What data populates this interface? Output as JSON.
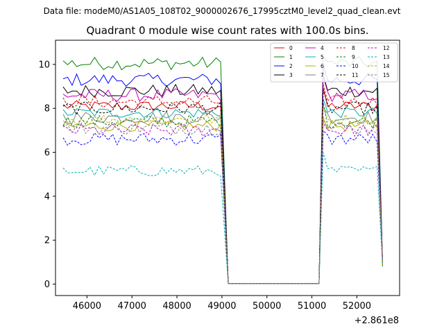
{
  "chart_data": {
    "type": "line",
    "suptitle": "Data file: modeM0/AS1A05_108T02_9000002676_17995cztM0_level2_quad_clean.evt",
    "title": "Quadrant 0 module wise count rates with 100.0s bins.",
    "xlabel": "",
    "ylabel": "",
    "x_offset_label": "+2.861e8",
    "xlim": [
      45300,
      52950
    ],
    "ylim": [
      -0.52,
      11.1
    ],
    "x_ticks": [
      46000,
      47000,
      48000,
      49000,
      50000,
      51000,
      52000
    ],
    "x_tick_labels": [
      "46000",
      "47000",
      "48000",
      "49000",
      "50000",
      "51000",
      "52000"
    ],
    "y_ticks": [
      0,
      2,
      4,
      6,
      8,
      10
    ],
    "y_tick_labels": [
      "0",
      "2",
      "4",
      "6",
      "8",
      "10"
    ],
    "legend_position": "top-right",
    "legend_columns": 4,
    "segments": [
      {
        "start": 45470,
        "end": 48970
      },
      {
        "start": 51250,
        "end": 52510
      }
    ],
    "gap_level": 0.02,
    "bin_step": 100,
    "series": [
      {
        "name": "0",
        "color": "#e00000",
        "dash": "solid",
        "level": 8.1,
        "amp": 0.25
      },
      {
        "name": "1",
        "color": "#008000",
        "dash": "solid",
        "level": 10.05,
        "amp": 0.3
      },
      {
        "name": "2",
        "color": "#0000ff",
        "dash": "solid",
        "level": 9.3,
        "amp": 0.3
      },
      {
        "name": "3",
        "color": "#000000",
        "dash": "solid",
        "level": 8.8,
        "amp": 0.3
      },
      {
        "name": "4",
        "color": "#c000c0",
        "dash": "solid",
        "level": 8.6,
        "amp": 0.3
      },
      {
        "name": "5",
        "color": "#00b0b0",
        "dash": "solid",
        "level": 7.8,
        "amp": 0.25
      },
      {
        "name": "6",
        "color": "#b0b000",
        "dash": "solid",
        "level": 7.2,
        "amp": 0.25
      },
      {
        "name": "7",
        "color": "#808080",
        "dash": "solid",
        "level": 7.6,
        "amp": 0.3
      },
      {
        "name": "8",
        "color": "#e00000",
        "dash": "dashed",
        "level": 8.3,
        "amp": 0.3
      },
      {
        "name": "9",
        "color": "#008000",
        "dash": "dashed",
        "level": 7.4,
        "amp": 0.3
      },
      {
        "name": "10",
        "color": "#0000ff",
        "dash": "dashed",
        "level": 6.6,
        "amp": 0.3
      },
      {
        "name": "11",
        "color": "#000000",
        "dash": "dashed",
        "level": 8.0,
        "amp": 0.3
      },
      {
        "name": "12",
        "color": "#c000c0",
        "dash": "dashed",
        "level": 7.0,
        "amp": 0.3
      },
      {
        "name": "13",
        "color": "#00b0b0",
        "dash": "dashed",
        "level": 5.15,
        "amp": 0.25
      },
      {
        "name": "14",
        "color": "#b0b000",
        "dash": "dashed",
        "level": 7.5,
        "amp": 0.25
      },
      {
        "name": "15",
        "color": "#808080",
        "dash": "dashed",
        "level": 7.1,
        "amp": 0.3
      }
    ]
  }
}
